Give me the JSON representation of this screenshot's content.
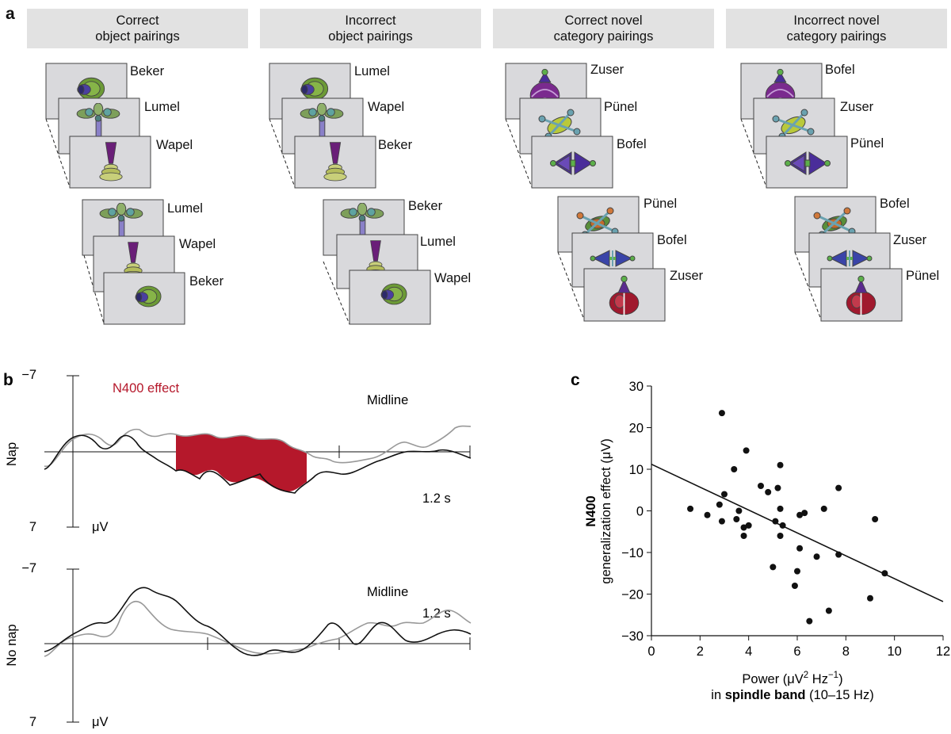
{
  "panel_a": {
    "letter": "a",
    "columns": [
      {
        "title_line1": "Correct",
        "title_line2": "object pairings",
        "top_labels": [
          "Beker",
          "Lumel",
          "Wapel"
        ],
        "bottom_labels": [
          "Lumel",
          "Wapel",
          "Beker"
        ]
      },
      {
        "title_line1": "Incorrect",
        "title_line2": "object pairings",
        "top_labels": [
          "Lumel",
          "Wapel",
          "Beker"
        ],
        "bottom_labels": [
          "Beker",
          "Lumel",
          "Wapel"
        ]
      },
      {
        "title_line1": "Correct novel",
        "title_line2": "category pairings",
        "top_labels": [
          "Zuser",
          "Pünel",
          "Bofel"
        ],
        "bottom_labels": [
          "Pünel",
          "Bofel",
          "Zuser"
        ]
      },
      {
        "title_line1": "Incorrect novel",
        "title_line2": "category pairings",
        "top_labels": [
          "Bofel",
          "Zuser",
          "Pünel"
        ],
        "bottom_labels": [
          "Bofel",
          "Zuser",
          "Pünel"
        ]
      }
    ]
  },
  "panel_b": {
    "letter": "b",
    "effect_label": "N400 effect",
    "effect_color": "#b5182b",
    "top": {
      "row_label": "Nap",
      "site": "Midline",
      "y_top_tick": "−7",
      "y_bottom_tick": "7",
      "unit": "μV",
      "time_label": "1.2 s"
    },
    "bottom": {
      "row_label": "No nap",
      "site": "Midline",
      "y_top_tick": "−7",
      "y_bottom_tick": "7",
      "unit": "μV",
      "time_label": "1.2 s"
    },
    "series_colors": {
      "condition_a": "#111111",
      "condition_b": "#999999"
    }
  },
  "panel_c": {
    "letter": "c",
    "ylabel_bold": "N400",
    "ylabel": "generalization effect (μV)",
    "xlabel_line1_pre": "Power (μV",
    "xlabel_sup1": "2",
    "xlabel_mid": " Hz",
    "xlabel_sup2": "−1",
    "xlabel_post": ")",
    "xlabel_line2_pre": "in ",
    "xlabel_line2_bold": "spindle band",
    "xlabel_line2_post": " (10–15 Hz)"
  },
  "chart_data": {
    "type": "scatter",
    "title": "",
    "xlabel": "Power (μV² Hz⁻¹) in spindle band (10–15 Hz)",
    "ylabel": "N400 generalization effect (μV)",
    "xlim": [
      0,
      12
    ],
    "ylim": [
      -30,
      30
    ],
    "xticks": [
      0,
      2,
      4,
      6,
      8,
      10,
      12
    ],
    "yticks": [
      30,
      20,
      10,
      0,
      -10,
      -20,
      -30
    ],
    "points": [
      [
        1.6,
        0.5
      ],
      [
        2.3,
        -1.0
      ],
      [
        2.8,
        1.5
      ],
      [
        2.9,
        23.5
      ],
      [
        2.9,
        -2.5
      ],
      [
        3.0,
        4.0
      ],
      [
        3.4,
        10.0
      ],
      [
        3.5,
        -2.0
      ],
      [
        3.6,
        0.0
      ],
      [
        3.8,
        -4.0
      ],
      [
        3.8,
        -6.0
      ],
      [
        3.9,
        14.5
      ],
      [
        4.0,
        -3.5
      ],
      [
        4.5,
        6.0
      ],
      [
        4.8,
        4.5
      ],
      [
        5.0,
        -13.5
      ],
      [
        5.1,
        -2.5
      ],
      [
        5.2,
        5.5
      ],
      [
        5.3,
        11.0
      ],
      [
        5.3,
        0.5
      ],
      [
        5.3,
        -6.0
      ],
      [
        5.4,
        -3.5
      ],
      [
        5.9,
        -18.0
      ],
      [
        6.0,
        -14.5
      ],
      [
        6.1,
        -9.0
      ],
      [
        6.1,
        -1.0
      ],
      [
        6.3,
        -0.5
      ],
      [
        6.5,
        -26.5
      ],
      [
        6.8,
        -11.0
      ],
      [
        7.1,
        0.5
      ],
      [
        7.3,
        -24.0
      ],
      [
        7.7,
        5.5
      ],
      [
        7.7,
        -10.5
      ],
      [
        9.0,
        -21.0
      ],
      [
        9.2,
        -2.0
      ],
      [
        9.6,
        -15.0
      ]
    ],
    "fit_line": {
      "x": [
        0,
        12
      ],
      "y": [
        11.2,
        -21.8
      ]
    }
  }
}
